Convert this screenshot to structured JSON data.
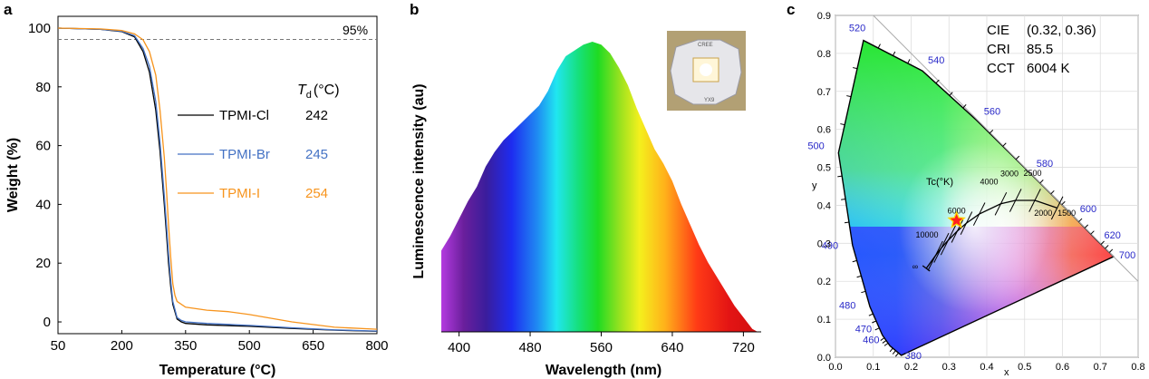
{
  "chart_data": [
    {
      "panel": "a",
      "type": "line",
      "xlabel": "Temperature (°C)",
      "ylabel": "Weight (%)",
      "xlim": [
        50,
        800
      ],
      "ylim": [
        -4,
        104
      ],
      "xticks": [
        "50",
        "200",
        "350",
        "500",
        "650",
        "800"
      ],
      "yticks": [
        "0",
        "20",
        "40",
        "60",
        "80",
        "100"
      ],
      "reference_line": {
        "label": "95%",
        "y": 95
      },
      "legend_header": {
        "symbol": "T",
        "subscript": "d",
        "unit": "(°C)"
      },
      "series": [
        {
          "name": "TPMI-Cl",
          "td": "242",
          "color": "#000000",
          "x": [
            50,
            150,
            200,
            230,
            250,
            265,
            280,
            290,
            300,
            305,
            310,
            315,
            320,
            330,
            340,
            350,
            400,
            500,
            600,
            700,
            800
          ],
          "y": [
            100,
            99.6,
            98.8,
            97,
            92,
            85,
            72,
            58,
            40,
            30,
            20,
            12,
            6,
            1,
            0,
            -0.5,
            -1,
            -1.5,
            -2.2,
            -2.8,
            -3.2
          ]
        },
        {
          "name": "TPMI-Br",
          "td": "245",
          "color": "#4472c4",
          "x": [
            50,
            150,
            200,
            230,
            250,
            265,
            280,
            290,
            300,
            305,
            310,
            315,
            320,
            330,
            340,
            350,
            400,
            500,
            600,
            700,
            800
          ],
          "y": [
            100,
            99.6,
            98.9,
            97.4,
            93,
            87,
            75,
            61,
            43,
            33,
            23,
            14,
            7,
            1.5,
            0.5,
            0,
            -0.5,
            -1.2,
            -2,
            -2.7,
            -3.1
          ]
        },
        {
          "name": "TPMI-I",
          "td": "254",
          "color": "#f7941d",
          "x": [
            50,
            150,
            200,
            230,
            250,
            265,
            280,
            290,
            300,
            305,
            310,
            315,
            320,
            325,
            330,
            350,
            400,
            450,
            500,
            600,
            700,
            800
          ],
          "y": [
            100,
            99.7,
            99.2,
            98,
            96,
            92,
            84,
            72,
            56,
            45,
            33,
            22,
            13,
            9,
            7,
            5,
            4,
            3.5,
            2.5,
            0,
            -1.8,
            -2.5
          ]
        }
      ]
    },
    {
      "panel": "b",
      "type": "area",
      "xlabel": "Wavelength (nm)",
      "ylabel": "Luminescence intensity (au)",
      "xlim": [
        380,
        740
      ],
      "ylim": [
        0,
        1
      ],
      "xticks": [
        "400",
        "480",
        "560",
        "640",
        "720"
      ],
      "inset_photo_text": [
        "CREE",
        "YX9"
      ],
      "x": [
        380,
        390,
        400,
        410,
        420,
        430,
        440,
        450,
        460,
        470,
        480,
        490,
        500,
        510,
        520,
        530,
        540,
        550,
        560,
        570,
        580,
        590,
        600,
        610,
        620,
        630,
        640,
        650,
        660,
        670,
        680,
        690,
        700,
        710,
        720,
        730,
        736
      ],
      "values": [
        0.28,
        0.33,
        0.39,
        0.45,
        0.5,
        0.57,
        0.62,
        0.66,
        0.69,
        0.72,
        0.75,
        0.78,
        0.83,
        0.9,
        0.95,
        0.97,
        0.99,
        1.0,
        0.99,
        0.96,
        0.91,
        0.85,
        0.77,
        0.7,
        0.63,
        0.58,
        0.52,
        0.44,
        0.37,
        0.3,
        0.24,
        0.19,
        0.14,
        0.09,
        0.05,
        0.01,
        0.0
      ]
    },
    {
      "panel": "c",
      "type": "scatter",
      "xlabel": "x",
      "ylabel": "y",
      "xlim": [
        0,
        0.8
      ],
      "ylim": [
        0,
        0.9
      ],
      "xticks": [
        "0.0",
        "0.1",
        "0.2",
        "0.3",
        "0.4",
        "0.5",
        "0.6",
        "0.7",
        "0.8"
      ],
      "yticks": [
        "0.0",
        "0.1",
        "0.2",
        "0.3",
        "0.4",
        "0.5",
        "0.6",
        "0.7",
        "0.8",
        "0.9"
      ],
      "annotations": [
        {
          "label": "CIE",
          "value": "(0.32, 0.36)"
        },
        {
          "label": "CRI",
          "value": "85.5"
        },
        {
          "label": "CCT",
          "value": "6004 K"
        }
      ],
      "point": {
        "x": 0.32,
        "y": 0.36
      },
      "locus_wavelength_labels": [
        {
          "label": "380",
          "x": 0.1741,
          "y": 0.005
        },
        {
          "label": "460",
          "x": 0.144,
          "y": 0.03
        },
        {
          "label": "470",
          "x": 0.124,
          "y": 0.058
        },
        {
          "label": "480",
          "x": 0.091,
          "y": 0.133
        },
        {
          "label": "490",
          "x": 0.045,
          "y": 0.295
        },
        {
          "label": "500",
          "x": 0.008,
          "y": 0.538
        },
        {
          "label": "520",
          "x": 0.074,
          "y": 0.834
        },
        {
          "label": "540",
          "x": 0.23,
          "y": 0.754
        },
        {
          "label": "560",
          "x": 0.373,
          "y": 0.624
        },
        {
          "label": "580",
          "x": 0.512,
          "y": 0.487
        },
        {
          "label": "600",
          "x": 0.627,
          "y": 0.373
        },
        {
          "label": "620",
          "x": 0.691,
          "y": 0.308
        },
        {
          "label": "700",
          "x": 0.735,
          "y": 0.265
        }
      ],
      "planckian_label": "Tc(°K)",
      "cct_labels": [
        "10000",
        "6000",
        "4000",
        "3000",
        "2500",
        "2000",
        "1500",
        "∞"
      ],
      "planckian_locus": {
        "x": [
          0.24,
          0.264,
          0.28,
          0.298,
          0.322,
          0.346,
          0.38,
          0.437,
          0.476,
          0.527,
          0.586
        ],
        "y": [
          0.234,
          0.267,
          0.288,
          0.308,
          0.332,
          0.353,
          0.377,
          0.404,
          0.413,
          0.413,
          0.393
        ]
      }
    }
  ],
  "panel_labels": [
    "a",
    "b",
    "c"
  ]
}
